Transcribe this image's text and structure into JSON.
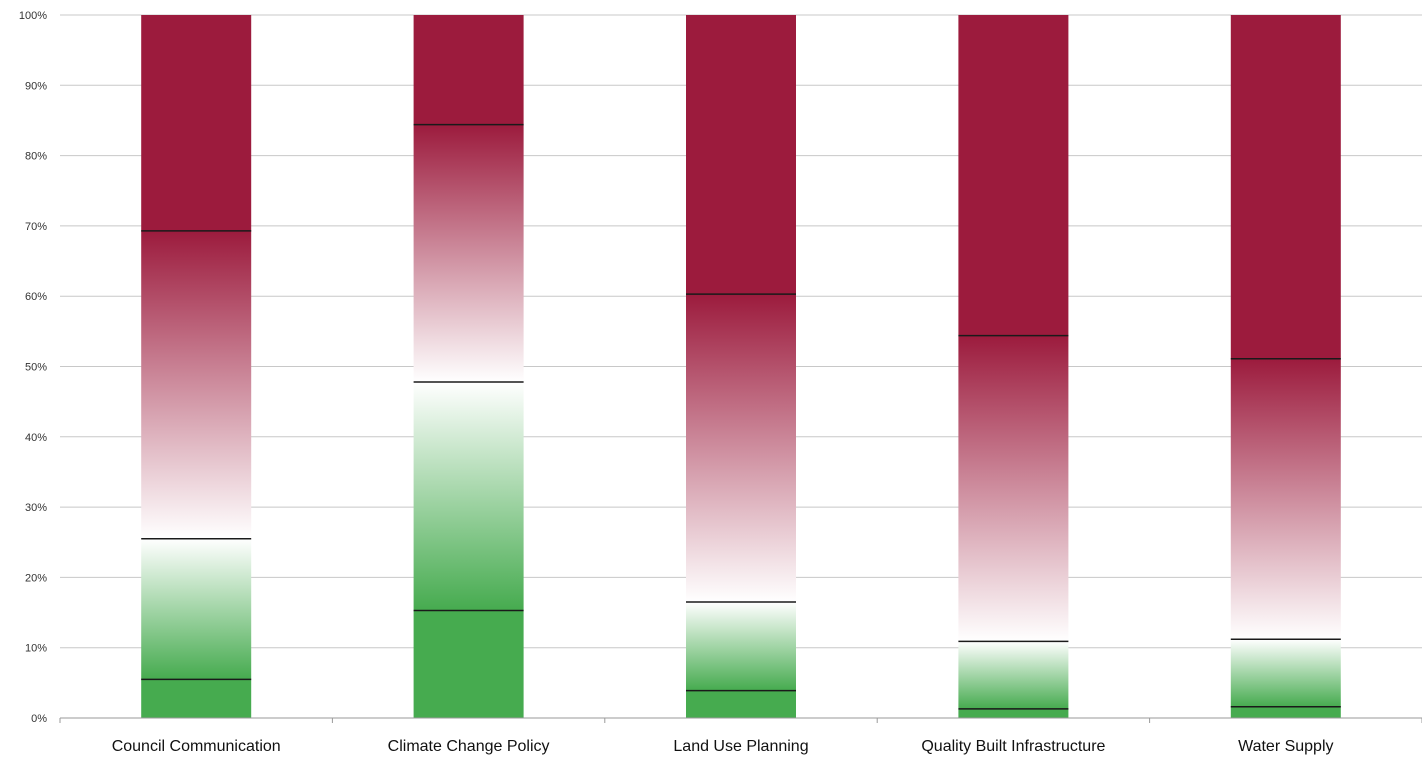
{
  "chart_data": {
    "type": "bar",
    "stacked": true,
    "percent": true,
    "categories": [
      "Council Communication",
      "Climate Change Policy",
      "Land Use Planning",
      "Quality Built Infrastructure",
      "Water Supply"
    ],
    "series": [
      {
        "values": [
          5.5,
          15.3,
          3.9,
          1.3,
          1.6
        ]
      },
      {
        "values": [
          20.0,
          32.5,
          12.6,
          9.6,
          9.6
        ]
      },
      {
        "values": [
          43.8,
          36.6,
          43.8,
          43.5,
          39.9
        ]
      },
      {
        "values": [
          30.7,
          15.6,
          39.7,
          45.6,
          48.9
        ]
      }
    ],
    "yticks": [
      "0%",
      "10%",
      "20%",
      "30%",
      "40%",
      "50%",
      "60%",
      "70%",
      "80%",
      "90%",
      "100%"
    ],
    "ylim": [
      0,
      100
    ],
    "grid": true,
    "legend": "none"
  },
  "colors": {
    "green": "#46ab4f",
    "white": "#ffffff",
    "red": "#9c1b3d",
    "grid": "#c8c8c8",
    "axis": "#9a9a9a"
  }
}
